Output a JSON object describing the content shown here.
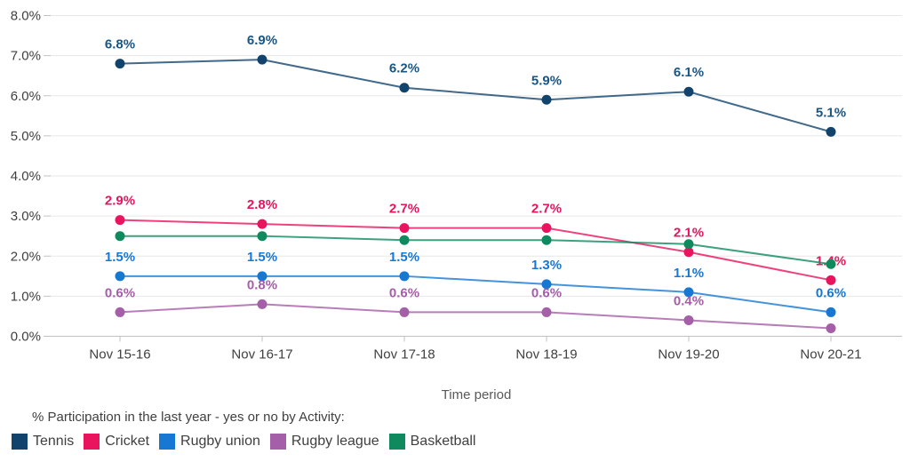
{
  "chart_data": {
    "type": "line",
    "title": "",
    "xlabel": "Time period",
    "ylabel": "",
    "ylim": [
      0,
      8
    ],
    "y_ticks": [
      "0.0%",
      "1.0%",
      "2.0%",
      "3.0%",
      "4.0%",
      "5.0%",
      "6.0%",
      "7.0%",
      "8.0%"
    ],
    "grid": true,
    "legend_position": "bottom-left",
    "legend_title": "% Participation in the last year - yes or no by Activity:",
    "categories": [
      "Nov 15-16",
      "Nov 16-17",
      "Nov 17-18",
      "Nov 18-19",
      "Nov 19-20",
      "Nov 20-21"
    ],
    "series": [
      {
        "name": "Tennis",
        "color": "#12436D",
        "label_color": "#1A5684",
        "values": [
          6.8,
          6.9,
          6.2,
          5.9,
          6.1,
          5.1
        ],
        "labels": [
          "6.8%",
          "6.9%",
          "6.2%",
          "5.9%",
          "6.1%",
          "5.1%"
        ]
      },
      {
        "name": "Cricket",
        "color": "#E9135E",
        "label_color": "#E9135E",
        "values": [
          2.9,
          2.8,
          2.7,
          2.7,
          2.1,
          1.4
        ],
        "labels": [
          "2.9%",
          "2.8%",
          "2.7%",
          "2.7%",
          "2.1%",
          "1.4%"
        ]
      },
      {
        "name": "Rugby union",
        "color": "#1678D2",
        "label_color": "#1678D2",
        "values": [
          1.5,
          1.5,
          1.5,
          1.3,
          1.1,
          0.6
        ],
        "labels": [
          "1.5%",
          "1.5%",
          "1.5%",
          "1.3%",
          "1.1%",
          "0.6%"
        ]
      },
      {
        "name": "Rugby league",
        "color": "#A55EA8",
        "label_color": "#A55EA8",
        "values": [
          0.6,
          0.8,
          0.6,
          0.6,
          0.4,
          0.2
        ],
        "labels": [
          "0.6%",
          "0.8%",
          "0.6%",
          "0.6%",
          "0.4%",
          null
        ]
      },
      {
        "name": "Basketball",
        "color": "#0E8A5E",
        "label_color": "#0E8A5E",
        "values": [
          2.5,
          2.5,
          2.4,
          2.4,
          2.3,
          1.8
        ],
        "labels": [
          null,
          null,
          null,
          null,
          null,
          null
        ]
      }
    ]
  }
}
